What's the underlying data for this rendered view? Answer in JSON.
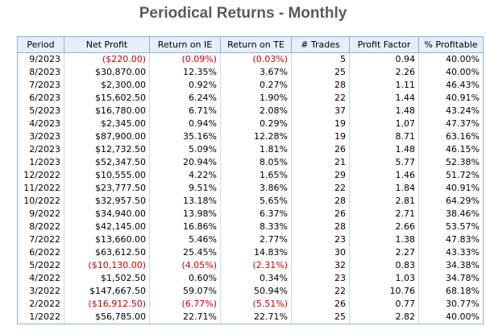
{
  "title": "Periodical Returns - Monthly",
  "colors": {
    "negative": "#cc0000",
    "header_bg": "#e6eef8",
    "border": "#8db0d6",
    "title": "#5a5a5a"
  },
  "columns": [
    "Period",
    "Net Profit",
    "Return on IE",
    "Return on TE",
    "# Trades",
    "Profit Factor",
    "% Profitable"
  ],
  "rows": [
    {
      "period": "9/2023",
      "net_profit": "($220.00)",
      "return_ie": "(0.09%)",
      "return_te": "(0.03%)",
      "trades": "5",
      "profit_factor": "0.94",
      "pct_profitable": "40.00%",
      "negative": true
    },
    {
      "period": "8/2023",
      "net_profit": "$30,870.00",
      "return_ie": "12.35%",
      "return_te": "3.67%",
      "trades": "25",
      "profit_factor": "2.26",
      "pct_profitable": "40.00%",
      "negative": false
    },
    {
      "period": "7/2023",
      "net_profit": "$2,300.00",
      "return_ie": "0.92%",
      "return_te": "0.27%",
      "trades": "28",
      "profit_factor": "1.11",
      "pct_profitable": "46.43%",
      "negative": false
    },
    {
      "period": "6/2023",
      "net_profit": "$15,602.50",
      "return_ie": "6.24%",
      "return_te": "1.90%",
      "trades": "22",
      "profit_factor": "1.44",
      "pct_profitable": "40.91%",
      "negative": false
    },
    {
      "period": "5/2023",
      "net_profit": "$16,780.00",
      "return_ie": "6.71%",
      "return_te": "2.08%",
      "trades": "37",
      "profit_factor": "1.48",
      "pct_profitable": "43.24%",
      "negative": false
    },
    {
      "period": "4/2023",
      "net_profit": "$2,345.00",
      "return_ie": "0.94%",
      "return_te": "0.29%",
      "trades": "19",
      "profit_factor": "1.07",
      "pct_profitable": "47.37%",
      "negative": false
    },
    {
      "period": "3/2023",
      "net_profit": "$87,900.00",
      "return_ie": "35.16%",
      "return_te": "12.28%",
      "trades": "19",
      "profit_factor": "8.71",
      "pct_profitable": "63.16%",
      "negative": false
    },
    {
      "period": "2/2023",
      "net_profit": "$12,732.50",
      "return_ie": "5.09%",
      "return_te": "1.81%",
      "trades": "26",
      "profit_factor": "1.48",
      "pct_profitable": "46.15%",
      "negative": false
    },
    {
      "period": "1/2023",
      "net_profit": "$52,347.50",
      "return_ie": "20.94%",
      "return_te": "8.05%",
      "trades": "21",
      "profit_factor": "5.77",
      "pct_profitable": "52.38%",
      "negative": false
    },
    {
      "period": "12/2022",
      "net_profit": "$10,555.00",
      "return_ie": "4.22%",
      "return_te": "1.65%",
      "trades": "29",
      "profit_factor": "1.46",
      "pct_profitable": "51.72%",
      "negative": false
    },
    {
      "period": "11/2022",
      "net_profit": "$23,777.50",
      "return_ie": "9.51%",
      "return_te": "3.86%",
      "trades": "22",
      "profit_factor": "1.84",
      "pct_profitable": "40.91%",
      "negative": false
    },
    {
      "period": "10/2022",
      "net_profit": "$32,957.50",
      "return_ie": "13.18%",
      "return_te": "5.65%",
      "trades": "28",
      "profit_factor": "2.81",
      "pct_profitable": "64.29%",
      "negative": false
    },
    {
      "period": "9/2022",
      "net_profit": "$34,940.00",
      "return_ie": "13.98%",
      "return_te": "6.37%",
      "trades": "26",
      "profit_factor": "2.71",
      "pct_profitable": "38.46%",
      "negative": false
    },
    {
      "period": "8/2022",
      "net_profit": "$42,145.00",
      "return_ie": "16.86%",
      "return_te": "8.33%",
      "trades": "28",
      "profit_factor": "2.66",
      "pct_profitable": "53.57%",
      "negative": false
    },
    {
      "period": "7/2022",
      "net_profit": "$13,660.00",
      "return_ie": "5.46%",
      "return_te": "2.77%",
      "trades": "23",
      "profit_factor": "1.38",
      "pct_profitable": "47.83%",
      "negative": false
    },
    {
      "period": "6/2022",
      "net_profit": "$63,612.50",
      "return_ie": "25.45%",
      "return_te": "14.83%",
      "trades": "30",
      "profit_factor": "2.27",
      "pct_profitable": "43.33%",
      "negative": false
    },
    {
      "period": "5/2022",
      "net_profit": "($10,130.00)",
      "return_ie": "(4.05%)",
      "return_te": "(2.31%)",
      "trades": "32",
      "profit_factor": "0.83",
      "pct_profitable": "34.38%",
      "negative": true
    },
    {
      "period": "4/2022",
      "net_profit": "$1,502.50",
      "return_ie": "0.60%",
      "return_te": "0.34%",
      "trades": "23",
      "profit_factor": "1.03",
      "pct_profitable": "34.78%",
      "negative": false
    },
    {
      "period": "3/2022",
      "net_profit": "$147,667.50",
      "return_ie": "59.07%",
      "return_te": "50.94%",
      "trades": "22",
      "profit_factor": "10.76",
      "pct_profitable": "68.18%",
      "negative": false
    },
    {
      "period": "2/2022",
      "net_profit": "($16,912.50)",
      "return_ie": "(6.77%)",
      "return_te": "(5.51%)",
      "trades": "26",
      "profit_factor": "0.77",
      "pct_profitable": "30.77%",
      "negative": true
    },
    {
      "period": "1/2022",
      "net_profit": "$56,785.00",
      "return_ie": "22.71%",
      "return_te": "22.71%",
      "trades": "25",
      "profit_factor": "2.82",
      "pct_profitable": "40.00%",
      "negative": false
    }
  ]
}
